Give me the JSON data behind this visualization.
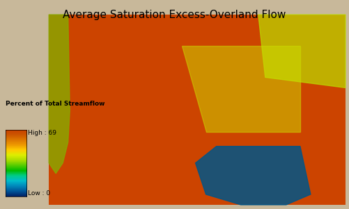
{
  "title": "Average Saturation Excess-Overland Flow",
  "title_fontsize": 11,
  "bg_color": "#c8b89a",
  "legend_title": "Percent of Total Streamflow",
  "legend_high_label": "High : 69",
  "legend_low_label": "Low : 0",
  "colorbar_colors": [
    "#8B0000",
    "#B22222",
    "#CD5C5C",
    "#D2691E",
    "#cc4400",
    "#cc6600",
    "#dd8800",
    "#ffaa00",
    "#ffcc00",
    "#ffee00",
    "#ccee00",
    "#88cc00",
    "#44bb00",
    "#00aa00",
    "#009900",
    "#00cc44",
    "#00ccaa",
    "#009999",
    "#0066aa",
    "#003399",
    "#001177"
  ],
  "map_bg": "#c8a060",
  "water_color": "#4444aa",
  "figsize": [
    5.01,
    3.01
  ],
  "dpi": 100
}
